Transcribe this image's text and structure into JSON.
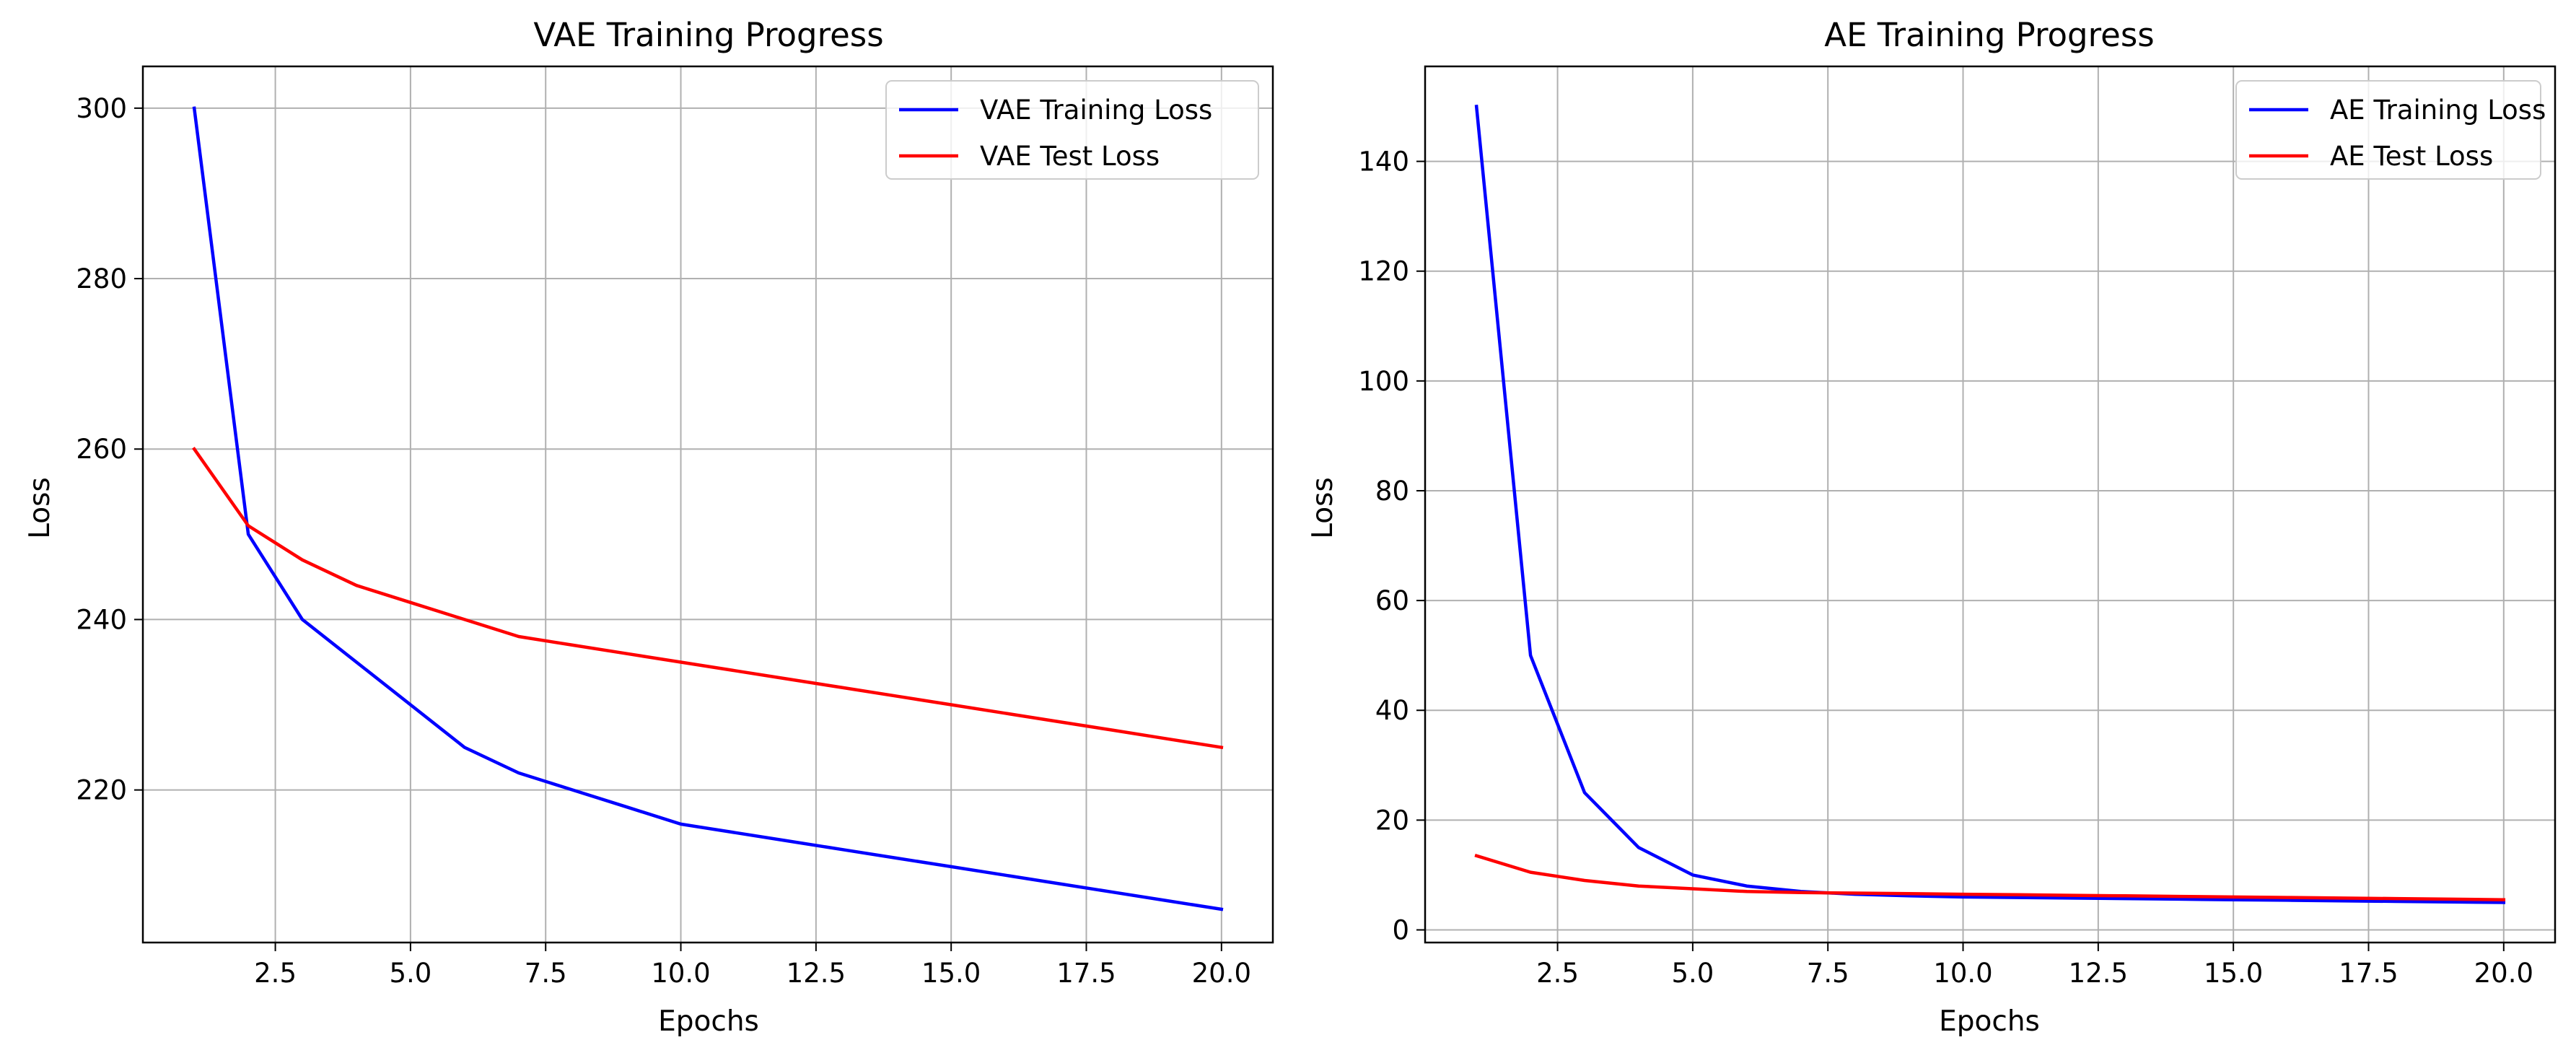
{
  "chart_data": [
    {
      "type": "line",
      "title": "VAE Training Progress",
      "xlabel": "Epochs",
      "ylabel": "Loss",
      "xlim": [
        0.05,
        20.95
      ],
      "ylim": [
        202.1,
        304.9
      ],
      "xticks": [
        2.5,
        5.0,
        7.5,
        10.0,
        12.5,
        15.0,
        17.5,
        20.0
      ],
      "xtick_labels": [
        "2.5",
        "5.0",
        "7.5",
        "10.0",
        "12.5",
        "15.0",
        "17.5",
        "20.0"
      ],
      "yticks": [
        220,
        240,
        260,
        280,
        300
      ],
      "ytick_labels": [
        "220",
        "240",
        "260",
        "280",
        "300"
      ],
      "grid": true,
      "legend_position": "top-right",
      "x": [
        1,
        2,
        3,
        4,
        5,
        6,
        7,
        8,
        9,
        10,
        11,
        12,
        13,
        14,
        15,
        16,
        17,
        18,
        19,
        20
      ],
      "series": [
        {
          "name": "VAE Training Loss",
          "color": "#0000ff",
          "values": [
            300,
            250,
            240,
            235,
            230,
            225,
            222,
            220,
            218,
            216,
            215,
            214,
            213,
            212,
            211,
            210,
            209,
            208,
            207,
            206
          ]
        },
        {
          "name": "VAE Test Loss",
          "color": "#ff0000",
          "values": [
            260,
            251,
            247,
            244,
            242,
            240,
            238,
            237,
            236,
            235,
            234,
            233,
            232,
            231,
            230,
            229,
            228,
            227,
            226,
            225
          ]
        }
      ]
    },
    {
      "type": "line",
      "title": "AE Training Progress",
      "xlabel": "Epochs",
      "ylabel": "Loss",
      "xlim": [
        0.05,
        20.95
      ],
      "ylim": [
        -2.3,
        157.3
      ],
      "xticks": [
        2.5,
        5.0,
        7.5,
        10.0,
        12.5,
        15.0,
        17.5,
        20.0
      ],
      "xtick_labels": [
        "2.5",
        "5.0",
        "7.5",
        "10.0",
        "12.5",
        "15.0",
        "17.5",
        "20.0"
      ],
      "yticks": [
        0,
        20,
        40,
        60,
        80,
        100,
        120,
        140
      ],
      "ytick_labels": [
        "0",
        "20",
        "40",
        "60",
        "80",
        "100",
        "120",
        "140"
      ],
      "grid": true,
      "legend_position": "top-right",
      "x": [
        1,
        2,
        3,
        4,
        5,
        6,
        7,
        8,
        9,
        10,
        11,
        12,
        13,
        14,
        15,
        16,
        17,
        18,
        19,
        20
      ],
      "series": [
        {
          "name": "AE Training Loss",
          "color": "#0000ff",
          "values": [
            150,
            50,
            25,
            15,
            10,
            8,
            7,
            6.5,
            6.2,
            6,
            5.9,
            5.8,
            5.7,
            5.6,
            5.5,
            5.4,
            5.3,
            5.2,
            5.1,
            5
          ]
        },
        {
          "name": "AE Test Loss",
          "color": "#ff0000",
          "values": [
            13.5,
            10.5,
            9,
            8,
            7.5,
            7,
            6.8,
            6.7,
            6.6,
            6.5,
            6.4,
            6.3,
            6.2,
            6.1,
            6,
            5.9,
            5.8,
            5.7,
            5.6,
            5.5
          ]
        }
      ]
    }
  ]
}
